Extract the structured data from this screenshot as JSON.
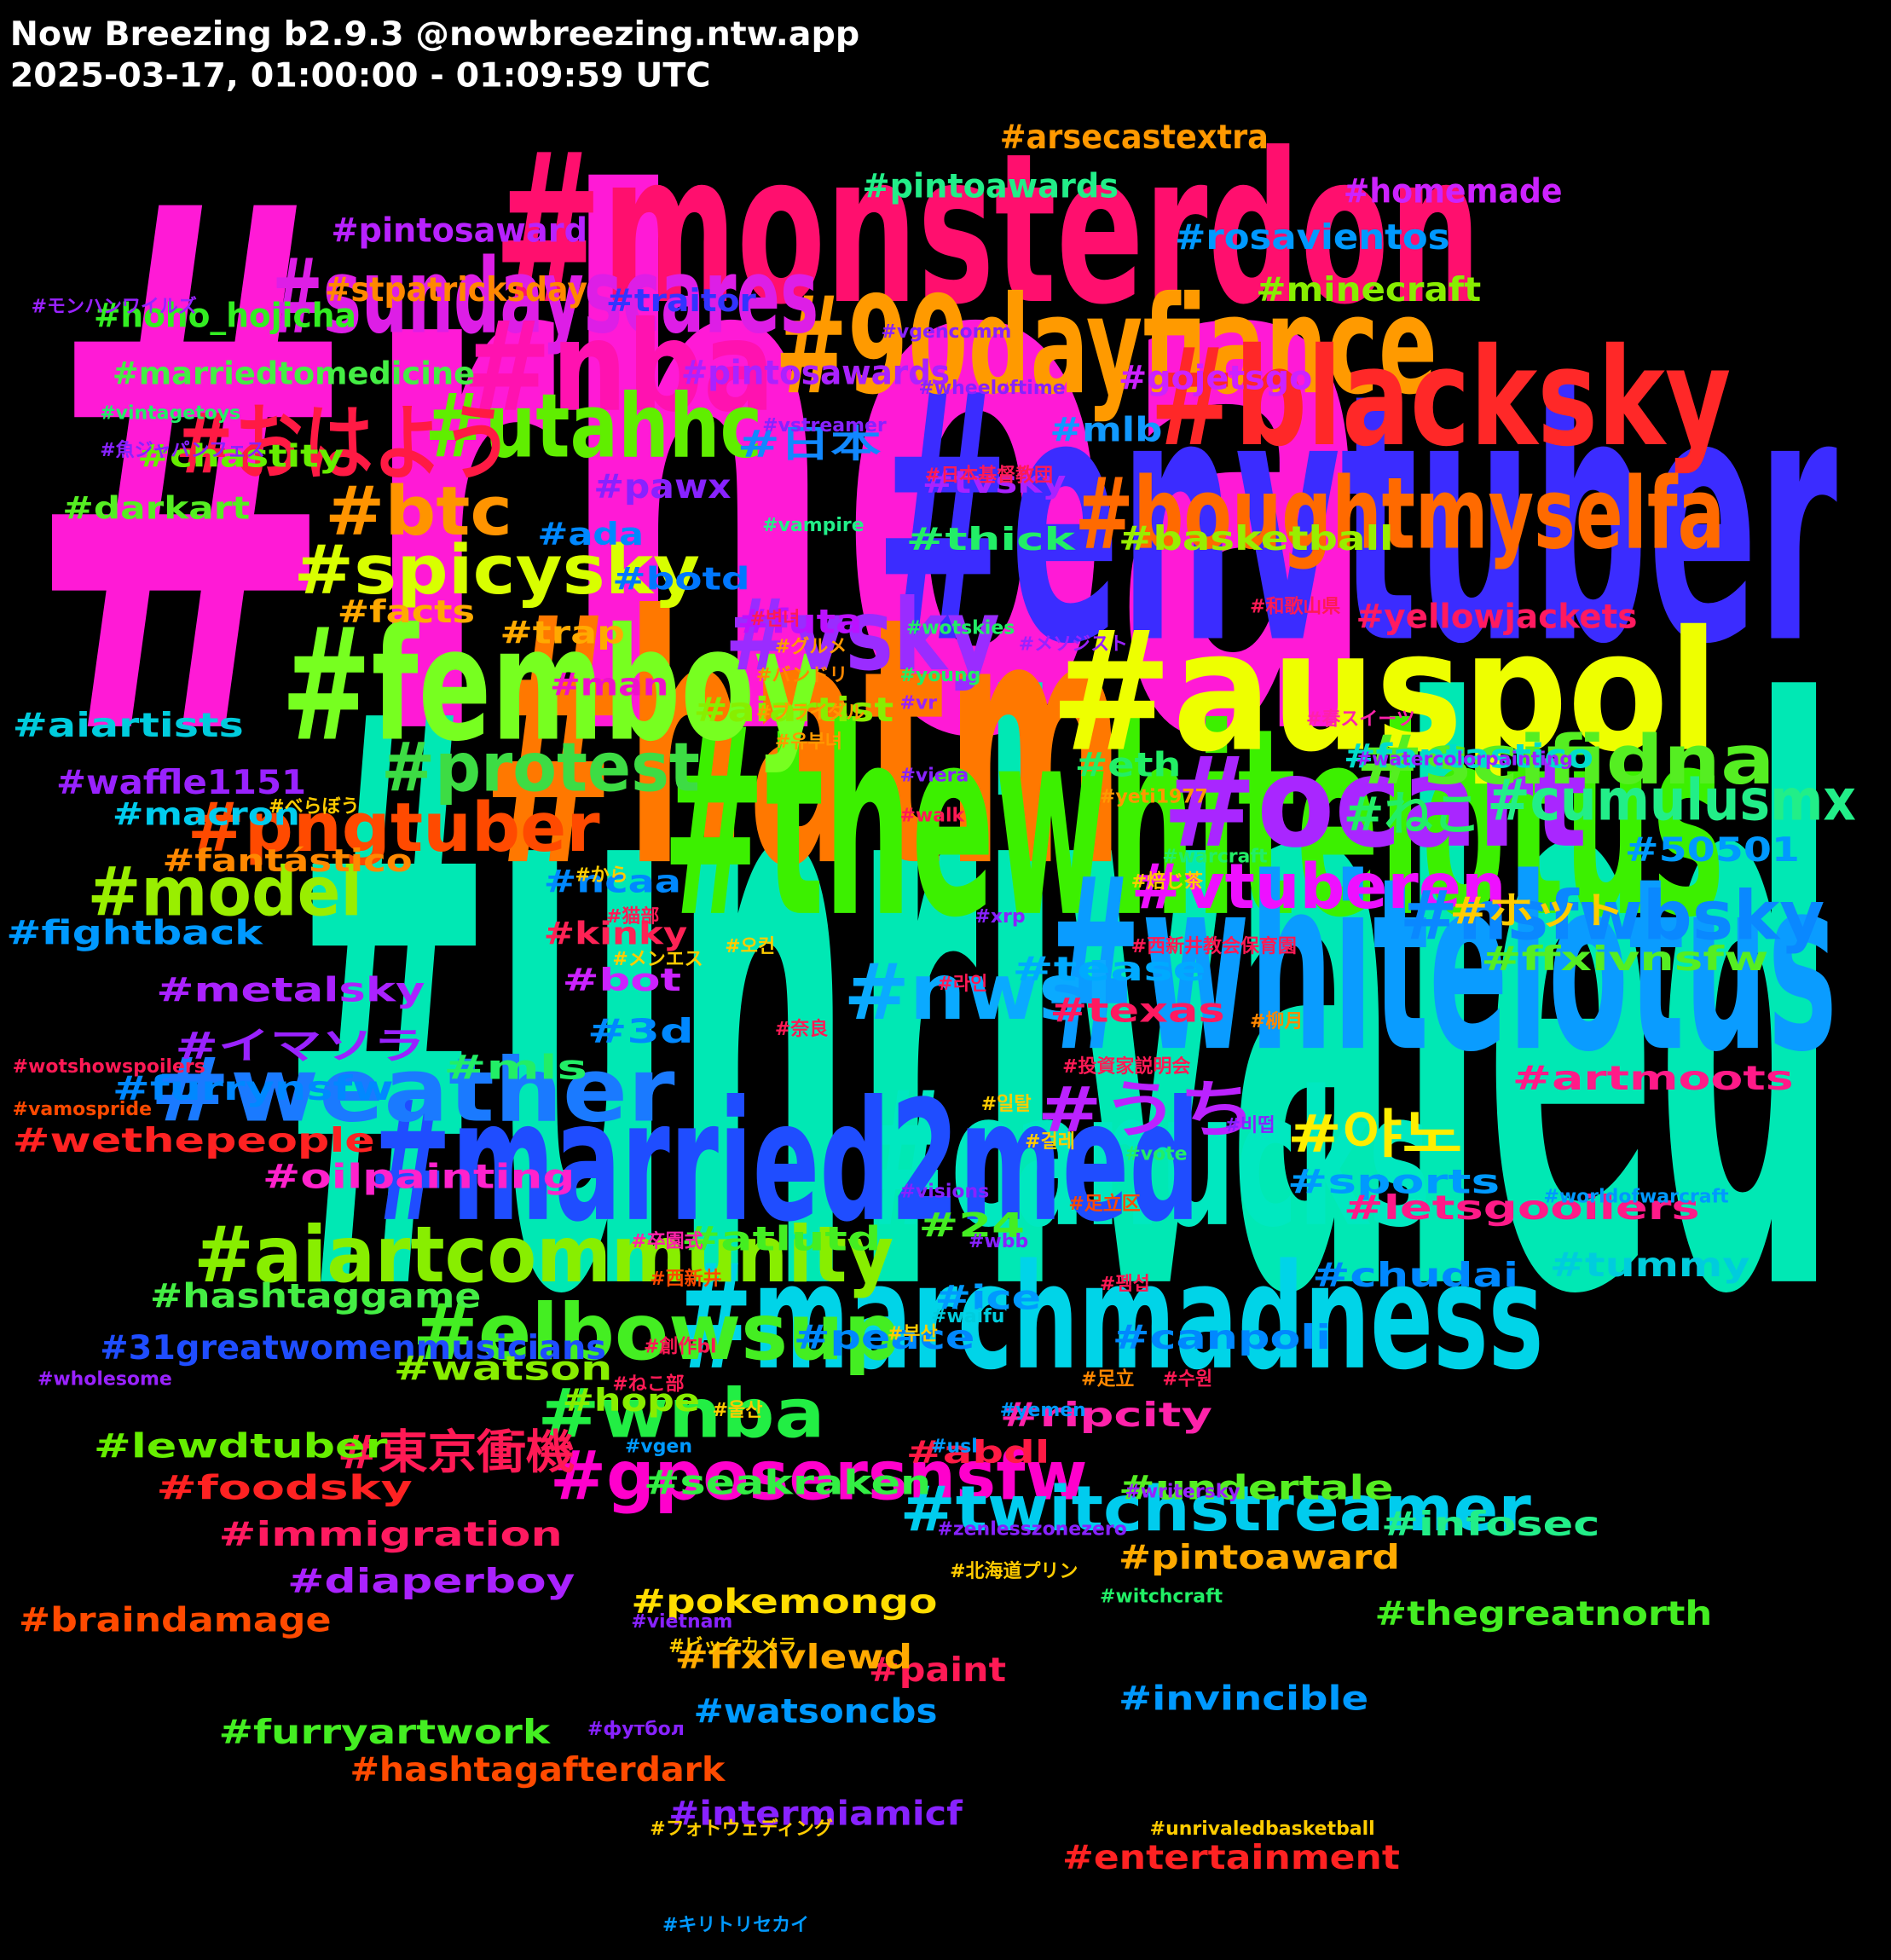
{
  "header": {
    "title": "Now Breezing b2.9.3 @nowbreezing.ntw.app",
    "subtitle": "2025-03-17, 01:00:00 - 01:09:59 UTC"
  },
  "tags": [
    {
      "text": "#rhoa",
      "color": "#ff1ad6"
    },
    {
      "text": "#unrivaled",
      "color": "#00e8b4"
    },
    {
      "text": "#envtuber",
      "color": "#3b2cff"
    },
    {
      "text": "#monsterdon",
      "color": "#ff0f6e"
    },
    {
      "text": "#hatm",
      "color": "#ff7800"
    },
    {
      "text": "#thewhitelotus",
      "color": "#3cf000"
    },
    {
      "text": "#whitelotus",
      "color": "#0a9cff"
    },
    {
      "text": "#auspol",
      "color": "#eeff00"
    },
    {
      "text": "#canucks",
      "color": "#00e8c0"
    },
    {
      "text": "#married2med",
      "color": "#1f4dff"
    },
    {
      "text": "#marchmadness",
      "color": "#00d4e8"
    },
    {
      "text": "#femboy",
      "color": "#77ff20"
    },
    {
      "text": "#90dayfiance",
      "color": "#ff9a00"
    },
    {
      "text": "#blacksky",
      "color": "#ff2828"
    },
    {
      "text": "#sundayscares",
      "color": "#dd1ee6"
    },
    {
      "text": "#nba",
      "color": "#ff12b0"
    },
    {
      "text": "#utahhc",
      "color": "#60ee00"
    },
    {
      "text": "#boughtmyselfa",
      "color": "#ff6a00"
    },
    {
      "text": "#おはよう",
      "color": "#ff1a44"
    },
    {
      "text": "#btc",
      "color": "#ff9400"
    },
    {
      "text": "#spicysky",
      "color": "#d8ff00"
    },
    {
      "text": "#vsky",
      "color": "#9a2cff"
    },
    {
      "text": "#ocart",
      "color": "#a926ff"
    },
    {
      "text": "#protest",
      "color": "#3ddc44"
    },
    {
      "text": "#scifidna",
      "color": "#55ee22"
    },
    {
      "text": "#pngtuber",
      "color": "#ff4a00"
    },
    {
      "text": "#cumulusmx",
      "color": "#22ee88"
    },
    {
      "text": "#model",
      "color": "#99ee00"
    },
    {
      "text": "#nwsl",
      "color": "#0aaaff"
    },
    {
      "text": "#vtuberen",
      "color": "#ee10ff"
    },
    {
      "text": "#nsfwbsky",
      "color": "#0a88ff"
    },
    {
      "text": "#weather",
      "color": "#1a7aff"
    },
    {
      "text": "#うち",
      "color": "#bb22ff"
    },
    {
      "text": "#야노",
      "color": "#ffee00"
    },
    {
      "text": "#aiartcommunity",
      "color": "#88ee00"
    },
    {
      "text": "#elbowsup",
      "color": "#44ee22"
    },
    {
      "text": "#wnba",
      "color": "#22ee44"
    },
    {
      "text": "#gposersnsfw",
      "color": "#ff00cc"
    },
    {
      "text": "#twitchstreamer",
      "color": "#00ccee"
    },
    {
      "text": "#東京衝機",
      "color": "#ff1a55"
    },
    {
      "text": "#ねこ",
      "color": "#22ee66"
    },
    {
      "text": "#arsecastextra",
      "color": "#ff9900"
    },
    {
      "text": "#pintoawards",
      "color": "#22ee88"
    },
    {
      "text": "#homemade",
      "color": "#cc22ff"
    },
    {
      "text": "#rosavientos",
      "color": "#0099ff"
    },
    {
      "text": "#pintosaward",
      "color": "#b822ff"
    },
    {
      "text": "#stpatricksday",
      "color": "#ff8800"
    },
    {
      "text": "#minecraft",
      "color": "#88ee00"
    },
    {
      "text": "#traitor",
      "color": "#3333ff"
    },
    {
      "text": "#hoho_hojicha",
      "color": "#33ee22"
    },
    {
      "text": "#marriedtomedicine",
      "color": "#44ee44"
    },
    {
      "text": "#pintosawards",
      "color": "#aa22ff"
    },
    {
      "text": "#gojetsgo",
      "color": "#cc22ff"
    },
    {
      "text": "#mlb",
      "color": "#1199ff"
    },
    {
      "text": "#日本",
      "color": "#1188ff"
    },
    {
      "text": "#chastity",
      "color": "#66ee00"
    },
    {
      "text": "#pawx",
      "color": "#8822ff"
    },
    {
      "text": "#tvsky",
      "color": "#aa22ff"
    },
    {
      "text": "#darkart",
      "color": "#55ee22"
    },
    {
      "text": "#ada",
      "color": "#0088ff"
    },
    {
      "text": "#thick",
      "color": "#22ee66"
    },
    {
      "text": "#basketball",
      "color": "#99ee00"
    },
    {
      "text": "#botd",
      "color": "#0077ff"
    },
    {
      "text": "#facts",
      "color": "#ffaa00"
    },
    {
      "text": "#futa",
      "color": "#bb11ff"
    },
    {
      "text": "#trap",
      "color": "#ffaa00"
    },
    {
      "text": "#yellowjackets",
      "color": "#ff1a60"
    },
    {
      "text": "#man",
      "color": "#ee11cc"
    },
    {
      "text": "#aiartist",
      "color": "#88ee00"
    },
    {
      "text": "#aiartists",
      "color": "#00ccdd"
    },
    {
      "text": "#fantastico",
      "color": "#00ddcc"
    },
    {
      "text": "#waffle1151",
      "color": "#9922ff"
    },
    {
      "text": "#eth",
      "color": "#22ee66"
    },
    {
      "text": "#macron",
      "color": "#00ccee"
    },
    {
      "text": "#fantástico",
      "color": "#ff8800"
    },
    {
      "text": "#50501",
      "color": "#0099ff"
    },
    {
      "text": "#ncaa",
      "color": "#0088ff"
    },
    {
      "text": "#kinky",
      "color": "#ff2255"
    },
    {
      "text": "#ホット",
      "color": "#ffcc00"
    },
    {
      "text": "#fightback",
      "color": "#0099ff"
    },
    {
      "text": "#ffxivnsfw",
      "color": "#55ee22"
    },
    {
      "text": "#tease",
      "color": "#00aaff"
    },
    {
      "text": "#bot",
      "color": "#cc22ff"
    },
    {
      "text": "#texas",
      "color": "#ff1a60"
    },
    {
      "text": "#metalsky",
      "color": "#aa22ff"
    },
    {
      "text": "#イマソラ",
      "color": "#9922ff"
    },
    {
      "text": "#mls",
      "color": "#22ee66"
    },
    {
      "text": "#3d",
      "color": "#0088ff"
    },
    {
      "text": "#artmoots",
      "color": "#ff1a88"
    },
    {
      "text": "#furrynsfw",
      "color": "#0088ff"
    },
    {
      "text": "#sports",
      "color": "#0099ff"
    },
    {
      "text": "#wethepeople",
      "color": "#ff2222"
    },
    {
      "text": "#oilpainting",
      "color": "#ff22cc"
    },
    {
      "text": "#atlutd",
      "color": "#44ee22"
    },
    {
      "text": "#24",
      "color": "#44ee22"
    },
    {
      "text": "#letsgooilers",
      "color": "#ff1a88"
    },
    {
      "text": "#tummy",
      "color": "#00ccdd"
    },
    {
      "text": "#chudai",
      "color": "#0088ff"
    },
    {
      "text": "#hashtaggame",
      "color": "#44ee44"
    },
    {
      "text": "#31greatwomenmusicians",
      "color": "#1f4dff"
    },
    {
      "text": "#watson",
      "color": "#88ee00"
    },
    {
      "text": "#ice",
      "color": "#0099ff"
    },
    {
      "text": "#peace",
      "color": "#0088ff"
    },
    {
      "text": "#canpoli",
      "color": "#0088ff"
    },
    {
      "text": "#hope",
      "color": "#88ee00"
    },
    {
      "text": "#ripcity",
      "color": "#ff22aa"
    },
    {
      "text": "#abdl",
      "color": "#ff1a44"
    },
    {
      "text": "#lewdtuber",
      "color": "#66ee00"
    },
    {
      "text": "#seakraken",
      "color": "#33ee44"
    },
    {
      "text": "#foodsky",
      "color": "#ff2222"
    },
    {
      "text": "#undertale",
      "color": "#55ee22"
    },
    {
      "text": "#infosec",
      "color": "#22ee88"
    },
    {
      "text": "#immigration",
      "color": "#ff1a60"
    },
    {
      "text": "#diaperboy",
      "color": "#aa22ff"
    },
    {
      "text": "#pokemongo",
      "color": "#ffdd00"
    },
    {
      "text": "#pintoaward",
      "color": "#ffaa00"
    },
    {
      "text": "#thegreatnorth",
      "color": "#44ee22"
    },
    {
      "text": "#braindamage",
      "color": "#ff4a00"
    },
    {
      "text": "#paint",
      "color": "#ff1a55"
    },
    {
      "text": "#ffxivlewd",
      "color": "#ffaa00"
    },
    {
      "text": "#invincible",
      "color": "#0099ff"
    },
    {
      "text": "#furryartwork",
      "color": "#44ee22"
    },
    {
      "text": "#watsoncbs",
      "color": "#0099ff"
    },
    {
      "text": "#hashtagafterdark",
      "color": "#ff4a00"
    },
    {
      "text": "#intermiamicf",
      "color": "#8822ff"
    },
    {
      "text": "#entertainment",
      "color": "#ff2222"
    },
    {
      "text": "#モンハンワイルズ",
      "color": "#9922ff"
    },
    {
      "text": "#vgencomm",
      "color": "#8822ff"
    },
    {
      "text": "#wheeloftime",
      "color": "#8822ff"
    },
    {
      "text": "#vintagetoys",
      "color": "#22ee66"
    },
    {
      "text": "#vstreamer",
      "color": "#8822ff"
    },
    {
      "text": "#魚ジャパンフェス",
      "color": "#8822ff"
    },
    {
      "text": "#日本基督教団",
      "color": "#ff1a55"
    },
    {
      "text": "#vampire",
      "color": "#22ee88"
    },
    {
      "text": "#변녀",
      "color": "#ff1a55"
    },
    {
      "text": "#和歌山県",
      "color": "#ff1a55"
    },
    {
      "text": "#メソジスト",
      "color": "#9922ff"
    },
    {
      "text": "#wotskies",
      "color": "#22ee66"
    },
    {
      "text": "#グルメ",
      "color": "#ff9900"
    },
    {
      "text": "#バンドリ",
      "color": "#ff8800"
    },
    {
      "text": "#young",
      "color": "#22ee66"
    },
    {
      "text": "#vr",
      "color": "#9922ff"
    },
    {
      "text": "#ブライダル",
      "color": "#ff9900"
    },
    {
      "text": "#春スイーツ",
      "color": "#ff22aa"
    },
    {
      "text": "#유부녀",
      "color": "#ff9900"
    },
    {
      "text": "#watercolorpainting",
      "color": "#9922ff"
    },
    {
      "text": "#viera",
      "color": "#8822ff"
    },
    {
      "text": "#べらぼう",
      "color": "#ffcc00"
    },
    {
      "text": "#yeti1977",
      "color": "#ff9900"
    },
    {
      "text": "#walk",
      "color": "#ff1a55"
    },
    {
      "text": "#warcraft",
      "color": "#22ee66"
    },
    {
      "text": "#から",
      "color": "#ffcc00"
    },
    {
      "text": "#焙じ茶",
      "color": "#ffcc00"
    },
    {
      "text": "#猫部",
      "color": "#ff1a55"
    },
    {
      "text": "#xrp",
      "color": "#8822ff"
    },
    {
      "text": "#西新井教会保育園",
      "color": "#ff1a55"
    },
    {
      "text": "#メンエス",
      "color": "#ffcc00"
    },
    {
      "text": "#오컨",
      "color": "#ffcc00"
    },
    {
      "text": "#라인",
      "color": "#ff1a55"
    },
    {
      "text": "#奈良",
      "color": "#ff1a55"
    },
    {
      "text": "#柳月",
      "color": "#ff8800"
    },
    {
      "text": "#投資家説明会",
      "color": "#ff1a55"
    },
    {
      "text": "#wotshowspoilers",
      "color": "#ff1a55"
    },
    {
      "text": "#vamospride",
      "color": "#ff4a00"
    },
    {
      "text": "#일탈",
      "color": "#ffcc00"
    },
    {
      "text": "#비떱",
      "color": "#8822ff"
    },
    {
      "text": "#걸레",
      "color": "#ffcc00"
    },
    {
      "text": "#vote",
      "color": "#22ee66"
    },
    {
      "text": "#visions",
      "color": "#8822ff"
    },
    {
      "text": "#worldofwarcraft",
      "color": "#0099ff"
    },
    {
      "text": "#足立区",
      "color": "#ff4a00"
    },
    {
      "text": "#卒園式",
      "color": "#ff22aa"
    },
    {
      "text": "#wbb",
      "color": "#8822ff"
    },
    {
      "text": "#西新井",
      "color": "#ff4a00"
    },
    {
      "text": "#펨섭",
      "color": "#ff1a55"
    },
    {
      "text": "#waifu",
      "color": "#00ccdd"
    },
    {
      "text": "#부산",
      "color": "#ffcc00"
    },
    {
      "text": "#創作bl",
      "color": "#ff1a55"
    },
    {
      "text": "#足立",
      "color": "#ff8800"
    },
    {
      "text": "#수원",
      "color": "#ff1a55"
    },
    {
      "text": "#wholesome",
      "color": "#9922ff"
    },
    {
      "text": "#ねこ部",
      "color": "#ff1a55"
    },
    {
      "text": "#울산",
      "color": "#ffcc00"
    },
    {
      "text": "#yemen",
      "color": "#0099ff"
    },
    {
      "text": "#usl",
      "color": "#0099ff"
    },
    {
      "text": "#vgen",
      "color": "#0099ff"
    },
    {
      "text": "#writersky",
      "color": "#9922ff"
    },
    {
      "text": "#zenlesszonezero",
      "color": "#8822ff"
    },
    {
      "text": "#北海道プリン",
      "color": "#ffcc00"
    },
    {
      "text": "#witchcraft",
      "color": "#22ee66"
    },
    {
      "text": "#vietnam",
      "color": "#8822ff"
    },
    {
      "text": "#ビックカメラ",
      "color": "#ffcc00"
    },
    {
      "text": "#футбол",
      "color": "#8822ff"
    },
    {
      "text": "#unrivaledbasketball",
      "color": "#ffcc00"
    },
    {
      "text": "#フォトウェディング",
      "color": "#ffcc00"
    },
    {
      "text": "#キリトリセカイ",
      "color": "#0099ff"
    }
  ]
}
